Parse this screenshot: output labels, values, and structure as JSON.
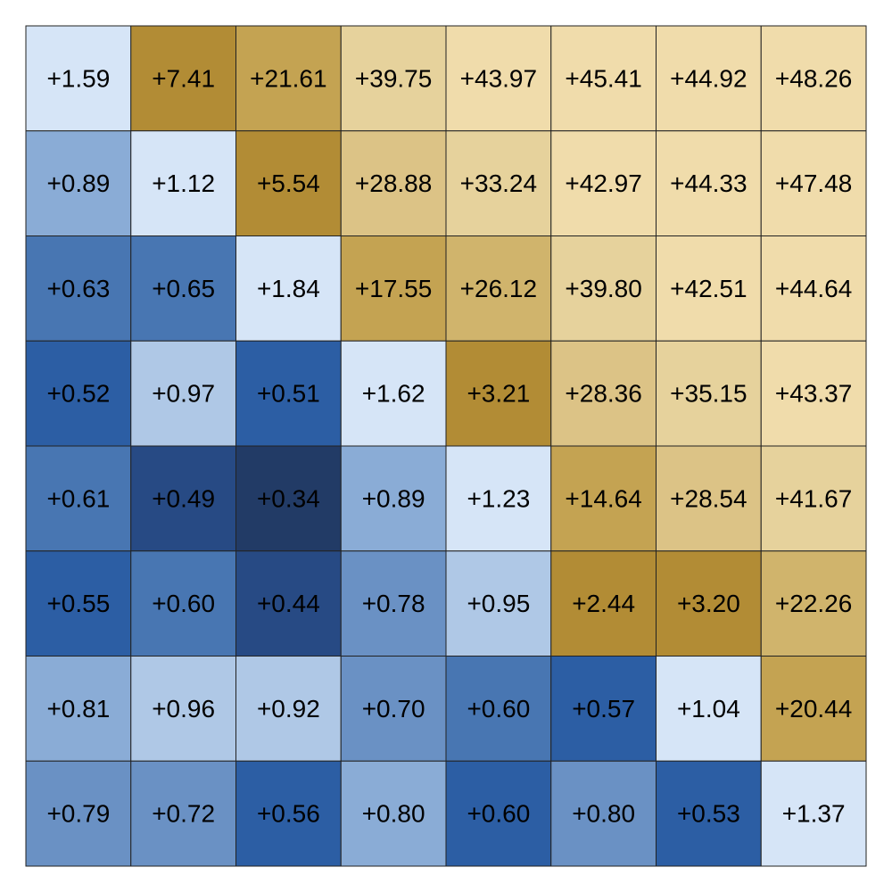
{
  "chart_data": {
    "type": "heatmap",
    "rows": 8,
    "cols": 8,
    "grid": true,
    "values": [
      [
        1.59,
        7.41,
        21.61,
        39.75,
        43.97,
        45.41,
        44.92,
        48.26
      ],
      [
        0.89,
        1.12,
        5.54,
        28.88,
        33.24,
        42.97,
        44.33,
        47.48
      ],
      [
        0.63,
        0.65,
        1.84,
        17.55,
        26.12,
        39.8,
        42.51,
        44.64
      ],
      [
        0.52,
        0.97,
        0.51,
        1.62,
        3.21,
        28.36,
        35.15,
        43.37
      ],
      [
        0.61,
        0.49,
        0.34,
        0.89,
        1.23,
        14.64,
        28.54,
        41.67
      ],
      [
        0.55,
        0.6,
        0.44,
        0.78,
        0.95,
        2.44,
        3.2,
        22.26
      ],
      [
        0.81,
        0.96,
        0.92,
        0.7,
        0.6,
        0.57,
        1.04,
        20.44
      ],
      [
        0.79,
        0.72,
        0.56,
        0.8,
        0.6,
        0.8,
        0.53,
        1.37
      ]
    ],
    "labels": [
      [
        "+1.59",
        "+7.41",
        "+21.61",
        "+39.75",
        "+43.97",
        "+45.41",
        "+44.92",
        "+48.26"
      ],
      [
        "+0.89",
        "+1.12",
        "+5.54",
        "+28.88",
        "+33.24",
        "+42.97",
        "+44.33",
        "+47.48"
      ],
      [
        "+0.63",
        "+0.65",
        "+1.84",
        "+17.55",
        "+26.12",
        "+39.80",
        "+42.51",
        "+44.64"
      ],
      [
        "+0.52",
        "+0.97",
        "+0.51",
        "+1.62",
        "+3.21",
        "+28.36",
        "+35.15",
        "+43.37"
      ],
      [
        "+0.61",
        "+0.49",
        "+0.34",
        "+0.89",
        "+1.23",
        "+14.64",
        "+28.54",
        "+41.67"
      ],
      [
        "+0.55",
        "+0.60",
        "+0.44",
        "+0.78",
        "+0.95",
        "+2.44",
        "+3.20",
        "+22.26"
      ],
      [
        "+0.81",
        "+0.96",
        "+0.92",
        "+0.70",
        "+0.60",
        "+0.57",
        "+1.04",
        "+20.44"
      ],
      [
        "+0.79",
        "+0.72",
        "+0.56",
        "+0.80",
        "+0.60",
        "+0.80",
        "+0.53",
        "+1.37"
      ]
    ],
    "colors": {
      "blue_dark": "#223b66",
      "blue_deep": "#274a84",
      "blue_strong": "#2c5ea4",
      "blue_mid": "#4876b2",
      "blue_medium_light": "#6a91c4",
      "blue_light": "#8aacd6",
      "blue_pale": "#afc8e6",
      "blue_palest": "#d6e5f7",
      "gold_dark": "#b28c35",
      "gold_mid": "#c4a352",
      "gold_light": "#d0b46c",
      "gold_pale": "#dcc386",
      "gold_paler": "#e6d29c",
      "gold_palest": "#f0dcab"
    },
    "cell_colors": [
      [
        "#d6e5f7",
        "#b28c35",
        "#c4a352",
        "#e6d29c",
        "#f0dcab",
        "#f0dcab",
        "#f0dcab",
        "#f0dcab"
      ],
      [
        "#8aacd6",
        "#d6e5f7",
        "#b28c35",
        "#dcc386",
        "#e6d29c",
        "#f0dcab",
        "#f0dcab",
        "#f0dcab"
      ],
      [
        "#4876b2",
        "#4876b2",
        "#d6e5f7",
        "#c4a352",
        "#d0b46c",
        "#e6d29c",
        "#f0dcab",
        "#f0dcab"
      ],
      [
        "#2c5ea4",
        "#afc8e6",
        "#2c5ea4",
        "#d6e5f7",
        "#b28c35",
        "#dcc386",
        "#e6d29c",
        "#f0dcab"
      ],
      [
        "#4876b2",
        "#274a84",
        "#223b66",
        "#8aacd6",
        "#d6e5f7",
        "#c4a352",
        "#dcc386",
        "#e6d29c"
      ],
      [
        "#2c5ea4",
        "#4876b2",
        "#274a84",
        "#6a91c4",
        "#afc8e6",
        "#b28c35",
        "#b28c35",
        "#d0b46c"
      ],
      [
        "#8aacd6",
        "#afc8e6",
        "#afc8e6",
        "#6a91c4",
        "#4876b2",
        "#2c5ea4",
        "#d6e5f7",
        "#c4a352"
      ],
      [
        "#6a91c4",
        "#6a91c4",
        "#2c5ea4",
        "#8aacd6",
        "#2c5ea4",
        "#6a91c4",
        "#2c5ea4",
        "#d6e5f7"
      ]
    ]
  }
}
